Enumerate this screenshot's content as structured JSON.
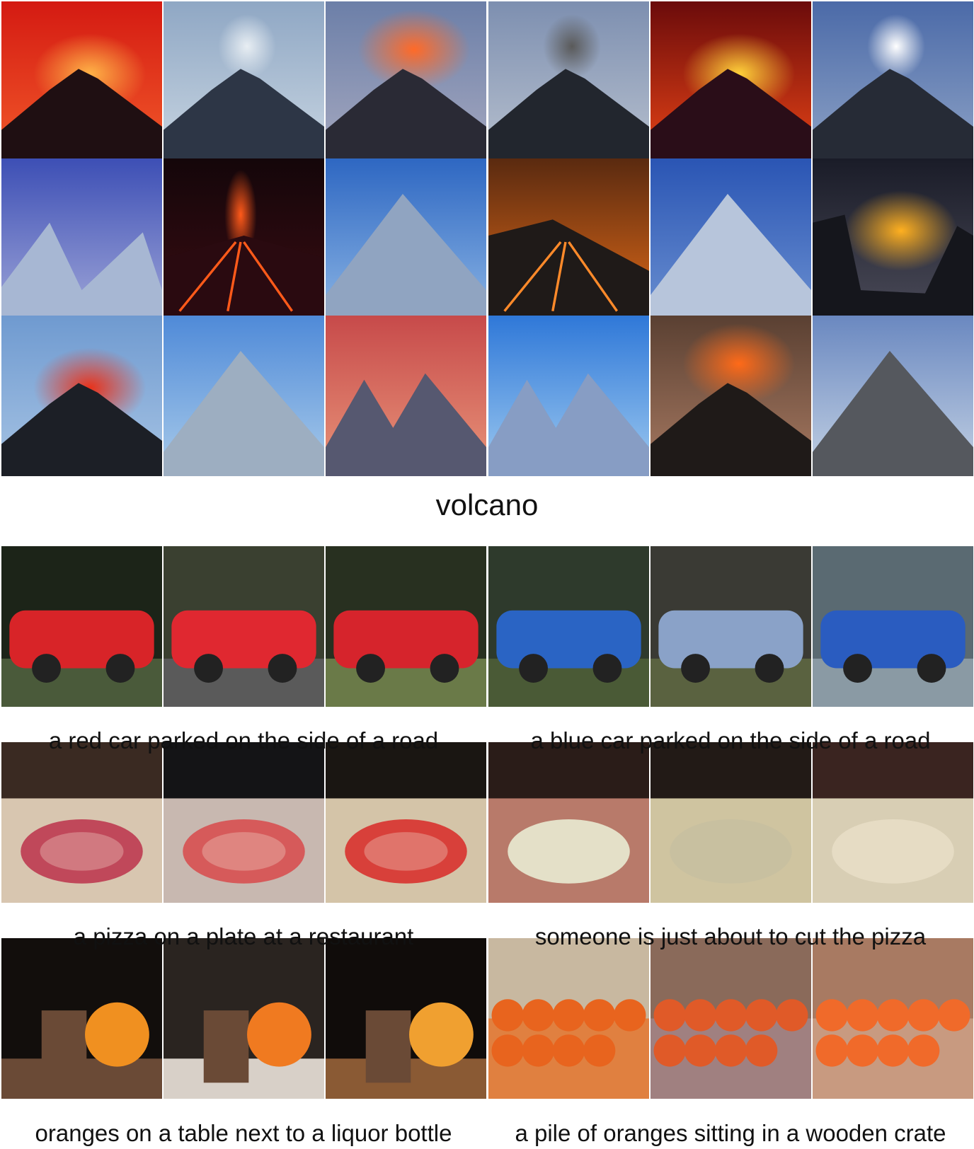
{
  "figure": {
    "volcano_caption": "volcano",
    "captions": [
      "a red car parked on the side of a road",
      "a blue car parked on the side of a road",
      "a pizza on a plate at a restaurant",
      "someone is just about to cut the pizza",
      "oranges on a table next to a liquor bottle",
      "a pile of oranges sitting in a wooden crate"
    ]
  },
  "volcano_tiles": [
    {
      "sky1": "#d41a12",
      "sky2": "#f25a2a",
      "mtn": "#1f0f12",
      "glow": "#ffb347",
      "kind": "erupt"
    },
    {
      "sky1": "#8fa7c4",
      "sky2": "#c9d6e2",
      "mtn": "#2d3646",
      "glow": "#e8eef3",
      "kind": "smoke"
    },
    {
      "sky1": "#6c7fa8",
      "sky2": "#a6a9c0",
      "mtn": "#2a2a35",
      "glow": "#ff6a28",
      "kind": "cloudfire"
    },
    {
      "sky1": "#7d8fb0",
      "sky2": "#b8c1cf",
      "mtn": "#22262e",
      "glow": "#5a5a5a",
      "kind": "smoke"
    },
    {
      "sky1": "#6b0b0b",
      "sky2": "#e84416",
      "mtn": "#2a0d18",
      "glow": "#ffd23a",
      "kind": "erupt"
    },
    {
      "sky1": "#4b6aa8",
      "sky2": "#8ea3c6",
      "mtn": "#262b36",
      "glow": "#ffffff",
      "kind": "smoke"
    },
    {
      "sky1": "#3d4fb5",
      "sky2": "#9fa6d8",
      "mtn": "#8a9fc4",
      "glow": "#ffffff",
      "kind": "peaks"
    },
    {
      "sky1": "#14060a",
      "sky2": "#3a0c12",
      "mtn": "#2a0a10",
      "glow": "#ff5a1a",
      "kind": "lava"
    },
    {
      "sky1": "#2e67c2",
      "sky2": "#8ab4e4",
      "mtn": "#6b86ad",
      "glow": "#ffffff",
      "kind": "snow"
    },
    {
      "sky1": "#5a2a10",
      "sky2": "#e06a18",
      "mtn": "#1f1a18",
      "glow": "#ff8a2a",
      "kind": "flow"
    },
    {
      "sky1": "#2a55b4",
      "sky2": "#6a8fd0",
      "mtn": "#9fb2cf",
      "glow": "#ffffff",
      "kind": "snow"
    },
    {
      "sky1": "#1a1c28",
      "sky2": "#4a4a58",
      "mtn": "#15161c",
      "glow": "#ffb020",
      "kind": "crater"
    },
    {
      "sky1": "#6f9ad0",
      "sky2": "#a7c4e4",
      "mtn": "#1c1f26",
      "glow": "#e8321a",
      "kind": "erupt"
    },
    {
      "sky1": "#4f8ad8",
      "sky2": "#a9cbea",
      "mtn": "#7d93ad",
      "glow": "#ffffff",
      "kind": "single"
    },
    {
      "sky1": "#c74a4a",
      "sky2": "#e8957a",
      "mtn": "#1e2140",
      "glow": "#f06848",
      "kind": "twin"
    },
    {
      "sky1": "#2f78d8",
      "sky2": "#9ecaf0",
      "mtn": "#5f7db0",
      "glow": "#ffffff",
      "kind": "twin"
    },
    {
      "sky1": "#5a4032",
      "sky2": "#a87a62",
      "mtn": "#1f1a18",
      "glow": "#ff6a18",
      "kind": "cloudfire"
    },
    {
      "sky1": "#6a88c0",
      "sky2": "#c4d2e4",
      "mtn": "#1c2028",
      "glow": "#c8d0dc",
      "kind": "single"
    }
  ],
  "scene_tiles": [
    {
      "bg": "#1c2418",
      "ground": "#4a5a3a",
      "obj": "#d82428",
      "kind": "car"
    },
    {
      "bg": "#3a4030",
      "ground": "#5a5a5a",
      "obj": "#e02830",
      "kind": "car"
    },
    {
      "bg": "#283020",
      "ground": "#6a7a48",
      "obj": "#d6242c",
      "kind": "car"
    },
    {
      "bg": "#2e3a2c",
      "ground": "#4a5a36",
      "obj": "#2a64c4",
      "kind": "car"
    },
    {
      "bg": "#3a3a34",
      "ground": "#5a6240",
      "obj": "#8aa2c8",
      "kind": "car"
    },
    {
      "bg": "#5a6a72",
      "ground": "#8a9aa4",
      "obj": "#2a5cc0",
      "kind": "car"
    },
    {
      "bg": "#3a2a22",
      "ground": "#d8c6b0",
      "obj": "#c0485a",
      "kind": "pizza"
    },
    {
      "bg": "#141416",
      "ground": "#c8b8b0",
      "obj": "#d65a5a",
      "kind": "pizza"
    },
    {
      "bg": "#1a1612",
      "ground": "#d4c4a8",
      "obj": "#d8403a",
      "kind": "pizza"
    },
    {
      "bg": "#2a1c18",
      "ground": "#b87a6a",
      "obj": "#e4e0c8",
      "kind": "dough"
    },
    {
      "bg": "#221a16",
      "ground": "#cfc4a0",
      "obj": "#c8c0a0",
      "kind": "dough"
    },
    {
      "bg": "#3a2420",
      "ground": "#d8ceb4",
      "obj": "#e6dcc4",
      "kind": "dough"
    },
    {
      "bg": "#120e0c",
      "ground": "#6a4a36",
      "obj": "#f09020",
      "kind": "orange"
    },
    {
      "bg": "#2a2420",
      "ground": "#d8d0c8",
      "obj": "#f07a20",
      "kind": "orange"
    },
    {
      "bg": "#100c0a",
      "ground": "#8a5a34",
      "obj": "#f0a030",
      "kind": "orange"
    },
    {
      "bg": "#c8b8a0",
      "ground": "#e08040",
      "obj": "#e8641e",
      "kind": "pile"
    },
    {
      "bg": "#8a6a5a",
      "ground": "#a08080",
      "obj": "#e05a28",
      "kind": "pile"
    },
    {
      "bg": "#a87a62",
      "ground": "#c89a80",
      "obj": "#f06a2a",
      "kind": "pile"
    }
  ]
}
